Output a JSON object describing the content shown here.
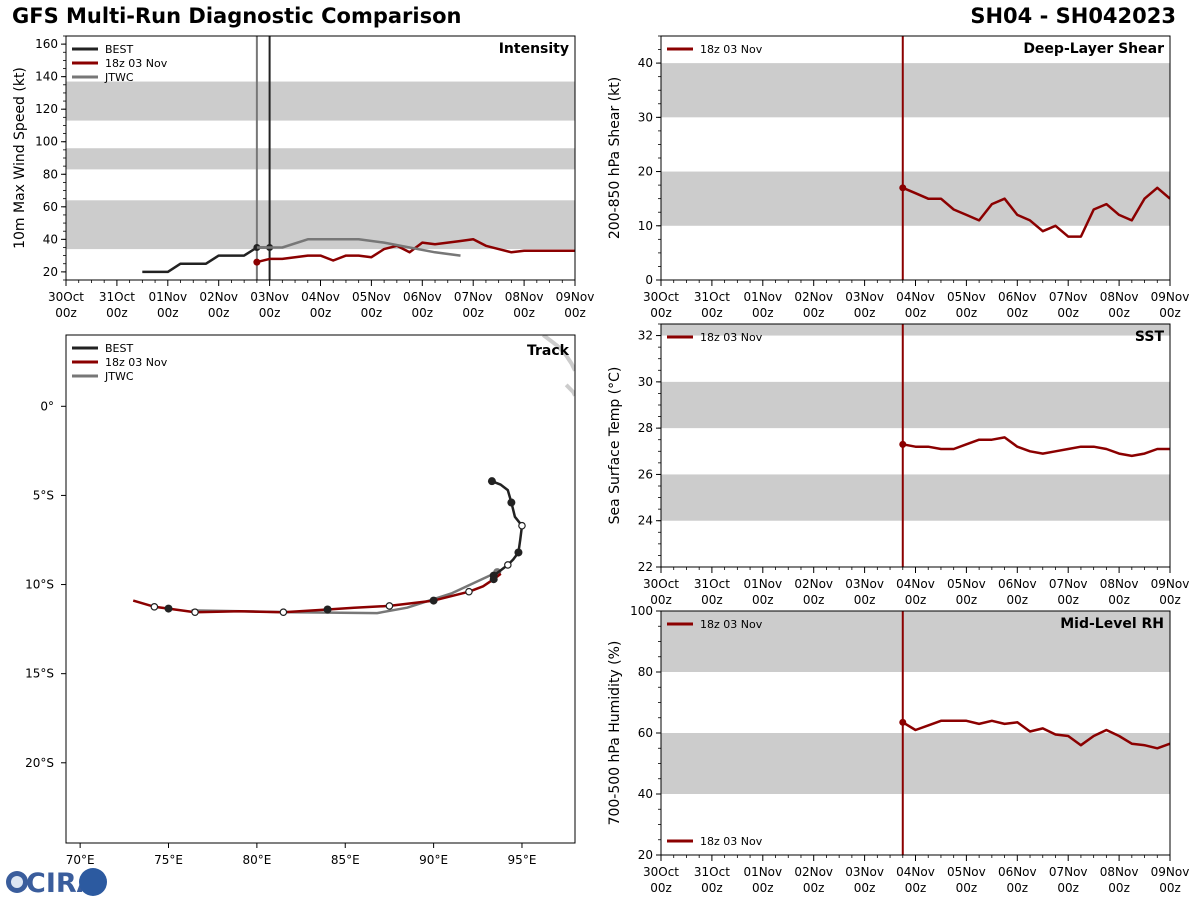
{
  "header": {
    "title": "GFS Multi-Run Diagnostic Comparison",
    "storm_id": "SH04 - SH042023"
  },
  "logo": {
    "text": "CIRA"
  },
  "time_axis": {
    "tick_labels": [
      "30Oct",
      "31Oct",
      "01Nov",
      "02Nov",
      "03Nov",
      "04Nov",
      "05Nov",
      "06Nov",
      "07Nov",
      "08Nov",
      "09Nov"
    ],
    "tick_hour": "00z",
    "range_days": [
      0,
      10
    ],
    "init_time_days": 4.75
  },
  "colors": {
    "best": "#222222",
    "gfs": "#8b0000",
    "jtwc": "#777777",
    "band": "#cccccc"
  },
  "chart_data": [
    {
      "id": "intensity",
      "type": "line",
      "title": "Intensity",
      "ylabel": "10m Max Wind Speed (kt)",
      "ylim": [
        15,
        165
      ],
      "yticks": [
        20,
        40,
        60,
        80,
        100,
        120,
        140,
        160
      ],
      "bands": [
        [
          34,
          64
        ],
        [
          83,
          96
        ],
        [
          113,
          137
        ]
      ],
      "verticals": [
        {
          "name": "init",
          "x": 3.75,
          "color": "jtwc"
        },
        {
          "name": "current",
          "x": 4.0,
          "color": "best"
        }
      ],
      "legend": [
        "BEST",
        "18z 03 Nov",
        "JTWC"
      ],
      "series": [
        {
          "name": "BEST",
          "color": "best",
          "x": [
            1.5,
            2.0,
            2.25,
            2.5,
            2.75,
            3.0,
            3.25,
            3.5,
            3.75,
            4.0
          ],
          "y": [
            20,
            20,
            25,
            25,
            25,
            30,
            30,
            30,
            35,
            35
          ],
          "markers_at": [
            3.75,
            4.0
          ]
        },
        {
          "name": "18z 03 Nov",
          "color": "gfs",
          "x": [
            3.75,
            4.0,
            4.25,
            4.5,
            4.75,
            5.0,
            5.25,
            5.5,
            5.75,
            6.0,
            6.25,
            6.5,
            6.75,
            7.0,
            7.25,
            7.5,
            7.75,
            8.0,
            8.25,
            8.5,
            8.75,
            9.0,
            9.25,
            9.5,
            9.75,
            10.0
          ],
          "y": [
            26,
            28,
            28,
            29,
            30,
            30,
            27,
            30,
            30,
            29,
            34,
            36,
            32,
            38,
            37,
            38,
            39,
            40,
            36,
            34,
            32,
            33,
            33,
            33,
            33,
            33
          ],
          "markers_at": [
            3.75
          ]
        },
        {
          "name": "JTWC",
          "color": "jtwc",
          "x": [
            3.75,
            4.25,
            4.75,
            5.25,
            5.75,
            6.25,
            6.75,
            7.25,
            7.75
          ],
          "y": [
            35,
            35,
            40,
            40,
            40,
            38,
            35,
            32,
            30
          ],
          "markers_at": []
        }
      ]
    },
    {
      "id": "shear",
      "type": "line",
      "title": "Deep-Layer Shear",
      "ylabel": "200-850 hPa Shear (kt)",
      "ylim": [
        0,
        45
      ],
      "yticks": [
        0,
        10,
        20,
        30,
        40
      ],
      "bands": [
        [
          10,
          20
        ],
        [
          30,
          40
        ]
      ],
      "verticals": [
        {
          "name": "init",
          "x": 4.75,
          "color": "gfs"
        }
      ],
      "legend": [
        "18z 03 Nov"
      ],
      "series": [
        {
          "name": "18z 03 Nov",
          "color": "gfs",
          "x": [
            4.75,
            5.0,
            5.25,
            5.5,
            5.75,
            6.0,
            6.25,
            6.5,
            6.75,
            7.0,
            7.25,
            7.5,
            7.75,
            8.0,
            8.25,
            8.5,
            8.75,
            9.0,
            9.25,
            9.5,
            9.75,
            10.0
          ],
          "y": [
            17,
            16,
            15,
            15,
            13,
            12,
            11,
            14,
            15,
            12,
            11,
            9,
            10,
            8,
            8,
            13,
            14,
            12,
            11,
            15,
            17,
            15
          ],
          "markers_at": [
            4.75
          ]
        }
      ]
    },
    {
      "id": "sst",
      "type": "line",
      "title": "SST",
      "ylabel": "Sea Surface Temp (°C)",
      "ylim": [
        22,
        32.5
      ],
      "yticks": [
        22,
        24,
        26,
        28,
        30,
        32
      ],
      "bands": [
        [
          24,
          26
        ],
        [
          28,
          30
        ],
        [
          32,
          32.5
        ]
      ],
      "verticals": [
        {
          "name": "init",
          "x": 4.75,
          "color": "gfs"
        }
      ],
      "legend": [
        "18z 03 Nov"
      ],
      "series": [
        {
          "name": "18z 03 Nov",
          "color": "gfs",
          "x": [
            4.75,
            5.0,
            5.25,
            5.5,
            5.75,
            6.0,
            6.25,
            6.5,
            6.75,
            7.0,
            7.25,
            7.5,
            7.75,
            8.0,
            8.25,
            8.5,
            8.75,
            9.0,
            9.25,
            9.5,
            9.75,
            10.0
          ],
          "y": [
            27.3,
            27.2,
            27.2,
            27.1,
            27.1,
            27.3,
            27.5,
            27.5,
            27.6,
            27.2,
            27.0,
            26.9,
            27.0,
            27.1,
            27.2,
            27.2,
            27.1,
            26.9,
            26.8,
            26.9,
            27.1,
            27.1
          ],
          "markers_at": [
            4.75
          ]
        }
      ]
    },
    {
      "id": "rh",
      "type": "line",
      "title": "Mid-Level RH",
      "ylabel": "700-500 hPa Humidity (%)",
      "ylim": [
        20,
        100
      ],
      "yticks": [
        20,
        40,
        60,
        80,
        100
      ],
      "bands": [
        [
          40,
          60
        ],
        [
          80,
          100
        ]
      ],
      "verticals": [
        {
          "name": "init",
          "x": 4.75,
          "color": "gfs"
        }
      ],
      "legend": [
        "18z 03 Nov"
      ],
      "series": [
        {
          "name": "18z 03 Nov",
          "color": "gfs",
          "x": [
            4.75,
            5.0,
            5.25,
            5.5,
            5.75,
            6.0,
            6.25,
            6.5,
            6.75,
            7.0,
            7.25,
            7.5,
            7.75,
            8.0,
            8.25,
            8.5,
            8.75,
            9.0,
            9.25,
            9.5,
            9.75,
            10.0
          ],
          "y": [
            63.5,
            61,
            62.5,
            64,
            64,
            64,
            63,
            64,
            63,
            63.5,
            60.5,
            61.5,
            59.5,
            59,
            56,
            59,
            61,
            59,
            56.5,
            56,
            55,
            56.5
          ],
          "markers_at": [
            4.75
          ]
        }
      ]
    },
    {
      "id": "track",
      "type": "line",
      "title": "Track",
      "xlabel_ticks": [
        "70°E",
        "75°E",
        "80°E",
        "85°E",
        "90°E",
        "95°E"
      ],
      "xtick_values": [
        70,
        75,
        80,
        85,
        90,
        95
      ],
      "ylabel_ticks": [
        "0°",
        "5°S",
        "10°S",
        "15°S",
        "20°S"
      ],
      "ytick_values": [
        0,
        -5,
        -10,
        -15,
        -20
      ],
      "xlim": [
        69.2,
        98
      ],
      "ylim": [
        -24.5,
        4
      ],
      "legend": [
        "BEST",
        "18z 03 Nov",
        "JTWC"
      ],
      "land": [
        {
          "lon": [
            96.2,
            97.0,
            97.4,
            97.8,
            98.0
          ],
          "lat": [
            4.0,
            3.4,
            3.0,
            2.4,
            2.0
          ]
        },
        {
          "lon": [
            97.5,
            97.9,
            98.0
          ],
          "lat": [
            1.2,
            0.8,
            0.6
          ]
        }
      ],
      "series": [
        {
          "name": "BEST",
          "color": "best",
          "lon": [
            93.3,
            93.8,
            94.2,
            94.4,
            94.6,
            95.0,
            94.9,
            94.8,
            94.5,
            94.2,
            93.8,
            93.4
          ],
          "lat": [
            -4.2,
            -4.4,
            -4.7,
            -5.4,
            -6.2,
            -6.7,
            -7.5,
            -8.2,
            -8.6,
            -8.9,
            -9.2,
            -9.5
          ],
          "filled_at": [
            0,
            3,
            7,
            11
          ],
          "open_at": [
            5,
            9
          ]
        },
        {
          "name": "18z 03 Nov",
          "color": "gfs",
          "lon": [
            93.8,
            93.4,
            92.8,
            92.0,
            90.0,
            87.5,
            85.5,
            84.0,
            81.5,
            79.0,
            76.5,
            75.0,
            74.2,
            73.0
          ],
          "lat": [
            -9.4,
            -9.7,
            -10.1,
            -10.4,
            -10.9,
            -11.2,
            -11.3,
            -11.4,
            -11.55,
            -11.5,
            -11.55,
            -11.35,
            -11.25,
            -10.9
          ],
          "filled_at": [
            1,
            4,
            7,
            11
          ],
          "open_at": [
            3,
            5,
            8,
            10,
            12
          ]
        },
        {
          "name": "JTWC",
          "color": "jtwc",
          "lon": [
            93.6,
            91.0,
            88.5,
            86.8,
            82.0,
            76.3
          ],
          "lat": [
            -9.3,
            -10.5,
            -11.3,
            -11.6,
            -11.55,
            -11.45
          ],
          "filled_at": [
            0
          ],
          "open_at": []
        }
      ]
    }
  ]
}
